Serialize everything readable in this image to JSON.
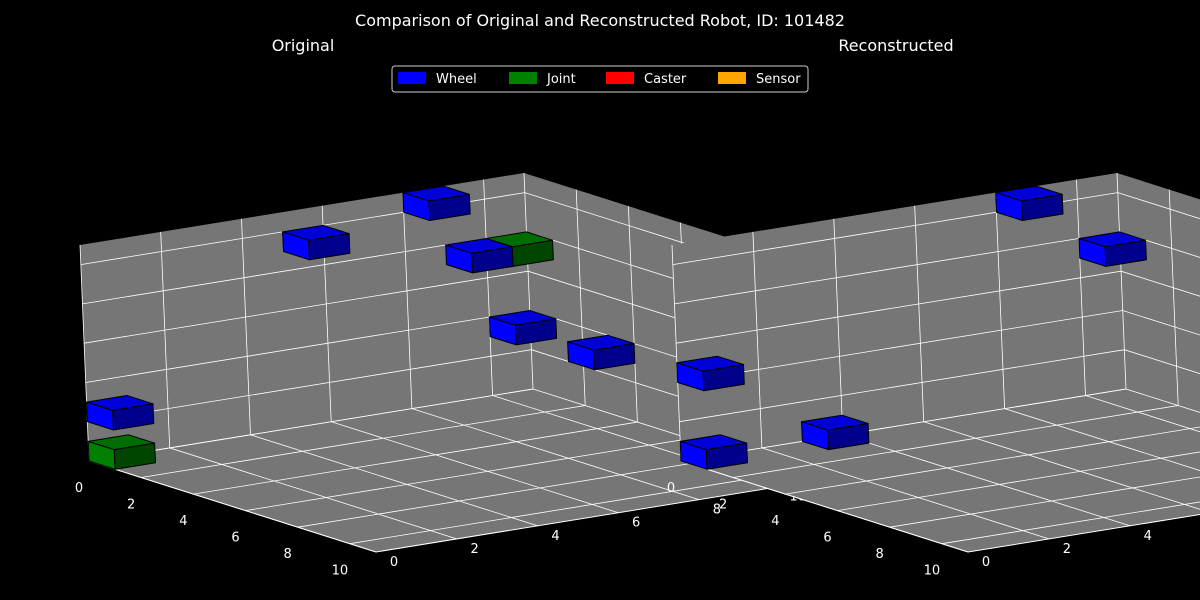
{
  "figure": {
    "title": "Comparison of Original and Reconstructed Robot, ID: 101482",
    "background": "#000000",
    "pane_color": "#767676",
    "grid_color": "#ffffff"
  },
  "legend": {
    "placement": "top-center",
    "items": [
      {
        "label": "Wheel",
        "color": "#0000ff"
      },
      {
        "label": "Joint",
        "color": "#008000"
      },
      {
        "label": "Caster",
        "color": "#ff0000"
      },
      {
        "label": "Sensor",
        "color": "#ffa500"
      }
    ]
  },
  "chart_data": [
    {
      "type": "scatter3d-voxels",
      "title": "Original",
      "xlim": [
        0,
        11
      ],
      "ylim": [
        0,
        11
      ],
      "zlim": [
        0,
        11
      ],
      "x_ticks": [
        "0",
        "2",
        "4",
        "6",
        "8",
        "10"
      ],
      "y_ticks": [
        "0",
        "2",
        "4",
        "6",
        "8",
        "10"
      ],
      "z_ticks": [
        "0",
        "2",
        "4",
        "6",
        "8",
        "10"
      ],
      "grid": true,
      "voxels": [
        {
          "x": 0,
          "y": 0,
          "z": 2,
          "kind": "Wheel"
        },
        {
          "x": 0,
          "y": 0,
          "z": 0,
          "kind": "Joint"
        },
        {
          "x": 0,
          "y": 5,
          "z": 9,
          "kind": "Wheel"
        },
        {
          "x": 0,
          "y": 8,
          "z": 10,
          "kind": "Wheel"
        },
        {
          "x": 0,
          "y": 9,
          "z": 7,
          "kind": "Wheel"
        },
        {
          "x": 0,
          "y": 10,
          "z": 7,
          "kind": "Joint"
        },
        {
          "x": 0,
          "y": 10,
          "z": 3,
          "kind": "Wheel"
        },
        {
          "x": 3,
          "y": 10,
          "z": 3,
          "kind": "Wheel"
        }
      ]
    },
    {
      "type": "scatter3d-voxels",
      "title": "Reconstructed",
      "xlim": [
        0,
        11
      ],
      "ylim": [
        0,
        11
      ],
      "zlim": [
        0,
        11
      ],
      "x_ticks": [
        "0",
        "2",
        "4",
        "6",
        "8",
        "10"
      ],
      "y_ticks": [
        "0",
        "2",
        "4",
        "6",
        "8",
        "10"
      ],
      "z_ticks": [
        "0",
        "2",
        "4",
        "6",
        "8",
        "10"
      ],
      "grid": true,
      "voxels": [
        {
          "x": 0,
          "y": 0,
          "z": 4,
          "kind": "Wheel"
        },
        {
          "x": 0,
          "y": 0,
          "z": 0,
          "kind": "Wheel"
        },
        {
          "x": 0,
          "y": 3,
          "z": 0,
          "kind": "Wheel"
        },
        {
          "x": 0,
          "y": 8,
          "z": 10,
          "kind": "Wheel"
        },
        {
          "x": 0,
          "y": 10,
          "z": 7,
          "kind": "Wheel"
        }
      ]
    }
  ]
}
